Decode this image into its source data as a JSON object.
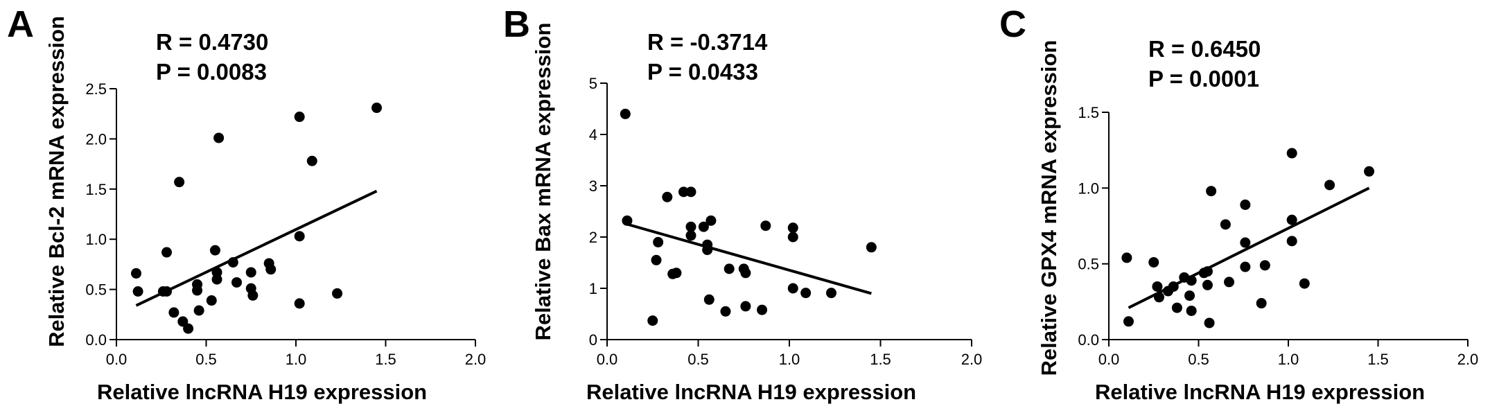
{
  "chart_data": [
    {
      "type": "scatter",
      "panel_label": "A",
      "annotation": [
        "R = 0.4730",
        "P = 0.0083"
      ],
      "xlabel": "Relative lncRNA H19 expression",
      "ylabel": "Relative Bcl-2 mRNA expression",
      "xlim": [
        0,
        2.0
      ],
      "ylim": [
        0,
        2.5
      ],
      "xticks": [
        "0.0",
        "0.5",
        "1.0",
        "1.5",
        "2.0"
      ],
      "yticks": [
        "0.0",
        "0.5",
        "1.0",
        "1.5",
        "2.0",
        "2.5"
      ],
      "xtick_values": [
        0,
        0.5,
        1.0,
        1.5,
        2.0
      ],
      "ytick_values": [
        0,
        0.5,
        1.0,
        1.5,
        2.0,
        2.5
      ],
      "fit_line": {
        "x": [
          0.11,
          1.45
        ],
        "y": [
          0.34,
          1.48
        ]
      },
      "points": [
        [
          0.11,
          0.66
        ],
        [
          0.12,
          0.48
        ],
        [
          0.26,
          0.48
        ],
        [
          0.28,
          0.48
        ],
        [
          0.28,
          0.87
        ],
        [
          0.32,
          0.27
        ],
        [
          0.35,
          1.57
        ],
        [
          0.37,
          0.18
        ],
        [
          0.4,
          0.11
        ],
        [
          0.45,
          0.49
        ],
        [
          0.45,
          0.55
        ],
        [
          0.46,
          0.29
        ],
        [
          0.53,
          0.39
        ],
        [
          0.55,
          0.89
        ],
        [
          0.56,
          0.6
        ],
        [
          0.56,
          0.67
        ],
        [
          0.57,
          2.01
        ],
        [
          0.65,
          0.77
        ],
        [
          0.67,
          0.57
        ],
        [
          0.75,
          0.51
        ],
        [
          0.75,
          0.67
        ],
        [
          0.76,
          0.44
        ],
        [
          0.85,
          0.76
        ],
        [
          0.86,
          0.7
        ],
        [
          1.02,
          2.22
        ],
        [
          1.02,
          1.03
        ],
        [
          1.02,
          0.36
        ],
        [
          1.09,
          1.78
        ],
        [
          1.23,
          0.46
        ],
        [
          1.45,
          2.31
        ]
      ]
    },
    {
      "type": "scatter",
      "panel_label": "B",
      "annotation": [
        "R = -0.3714",
        "P = 0.0433"
      ],
      "xlabel": "Relative lncRNA H19 expression",
      "ylabel": "Relative Bax mRNA expression",
      "xlim": [
        0,
        2.0
      ],
      "ylim": [
        0,
        5
      ],
      "xticks": [
        "0.0",
        "0.5",
        "1.0",
        "1.5",
        "2.0"
      ],
      "yticks": [
        "0",
        "1",
        "2",
        "3",
        "4",
        "5"
      ],
      "xtick_values": [
        0,
        0.5,
        1.0,
        1.5,
        2.0
      ],
      "ytick_values": [
        0,
        1,
        2,
        3,
        4,
        5
      ],
      "fit_line": {
        "x": [
          0.11,
          1.45
        ],
        "y": [
          2.25,
          0.9
        ]
      },
      "points": [
        [
          0.1,
          4.4
        ],
        [
          0.11,
          2.32
        ],
        [
          0.25,
          0.37
        ],
        [
          0.27,
          1.55
        ],
        [
          0.28,
          1.9
        ],
        [
          0.33,
          2.78
        ],
        [
          0.36,
          1.28
        ],
        [
          0.38,
          1.3
        ],
        [
          0.42,
          2.88
        ],
        [
          0.46,
          2.88
        ],
        [
          0.46,
          2.2
        ],
        [
          0.46,
          2.03
        ],
        [
          0.53,
          2.2
        ],
        [
          0.55,
          1.75
        ],
        [
          0.55,
          1.85
        ],
        [
          0.56,
          0.78
        ],
        [
          0.57,
          2.32
        ],
        [
          0.65,
          0.55
        ],
        [
          0.67,
          1.38
        ],
        [
          0.75,
          1.38
        ],
        [
          0.76,
          1.3
        ],
        [
          0.76,
          0.65
        ],
        [
          0.85,
          0.58
        ],
        [
          0.87,
          2.22
        ],
        [
          1.02,
          2.18
        ],
        [
          1.02,
          2.0
        ],
        [
          1.02,
          1.0
        ],
        [
          1.09,
          0.91
        ],
        [
          1.23,
          0.91
        ],
        [
          1.45,
          1.8
        ]
      ]
    },
    {
      "type": "scatter",
      "panel_label": "C",
      "annotation": [
        "R = 0.6450",
        "P = 0.0001"
      ],
      "xlabel": "Relative lncRNA H19 expression",
      "ylabel": "Relative GPX4 mRNA expression",
      "xlim": [
        0,
        2.0
      ],
      "ylim": [
        0,
        1.5
      ],
      "xticks": [
        "0.0",
        "0.5",
        "1.0",
        "1.5",
        "2.0"
      ],
      "yticks": [
        "0.0",
        "0.5",
        "1.0",
        "1.5"
      ],
      "xtick_values": [
        0,
        0.5,
        1.0,
        1.5,
        2.0
      ],
      "ytick_values": [
        0,
        0.5,
        1.0,
        1.5
      ],
      "fit_line": {
        "x": [
          0.11,
          1.45
        ],
        "y": [
          0.21,
          1.0
        ]
      },
      "points": [
        [
          0.1,
          0.54
        ],
        [
          0.11,
          0.12
        ],
        [
          0.25,
          0.51
        ],
        [
          0.27,
          0.35
        ],
        [
          0.28,
          0.28
        ],
        [
          0.33,
          0.32
        ],
        [
          0.36,
          0.35
        ],
        [
          0.38,
          0.21
        ],
        [
          0.42,
          0.41
        ],
        [
          0.45,
          0.29
        ],
        [
          0.46,
          0.19
        ],
        [
          0.46,
          0.39
        ],
        [
          0.53,
          0.44
        ],
        [
          0.55,
          0.45
        ],
        [
          0.55,
          0.36
        ],
        [
          0.56,
          0.11
        ],
        [
          0.57,
          0.98
        ],
        [
          0.65,
          0.76
        ],
        [
          0.67,
          0.38
        ],
        [
          0.76,
          0.89
        ],
        [
          0.76,
          0.64
        ],
        [
          0.76,
          0.48
        ],
        [
          0.85,
          0.24
        ],
        [
          0.87,
          0.49
        ],
        [
          1.02,
          1.23
        ],
        [
          1.02,
          0.79
        ],
        [
          1.02,
          0.65
        ],
        [
          1.09,
          0.37
        ],
        [
          1.23,
          1.02
        ],
        [
          1.45,
          1.11
        ]
      ]
    }
  ]
}
